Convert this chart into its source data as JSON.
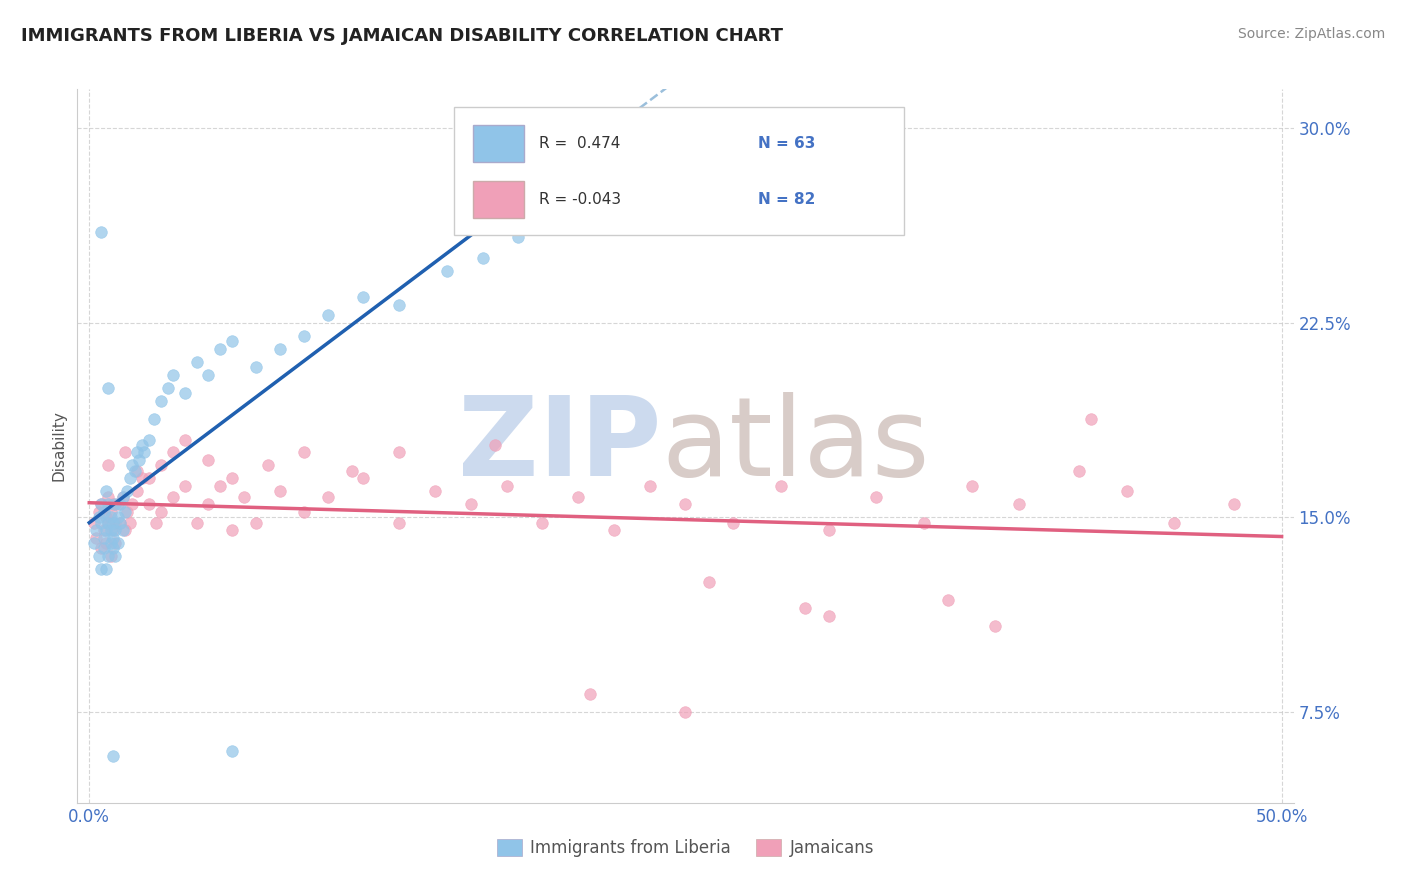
{
  "title": "IMMIGRANTS FROM LIBERIA VS JAMAICAN DISABILITY CORRELATION CHART",
  "source_text": "Source: ZipAtlas.com",
  "ylabel": "Disability",
  "xlim": [
    0.0,
    0.5
  ],
  "ylim": [
    0.04,
    0.315
  ],
  "yticks": [
    0.075,
    0.15,
    0.225,
    0.3
  ],
  "ytick_labels": [
    "7.5%",
    "15.0%",
    "22.5%",
    "30.0%"
  ],
  "xtick_labels": [
    "0.0%",
    "50.0%"
  ],
  "background_color": "#ffffff",
  "grid_color": "#cccccc",
  "legend_r1": "R =  0.474",
  "legend_n1": "N = 63",
  "legend_r2": "R = -0.043",
  "legend_n2": "N = 82",
  "color_liberia": "#90c4e8",
  "color_jamaican": "#f0a0b8",
  "trendline_color_liberia": "#2060b0",
  "trendline_color_jamaican": "#e06080",
  "trendline_dash_color": "#90b8d8",
  "tick_color": "#4472c4",
  "title_color": "#222222",
  "source_color": "#888888",
  "ylabel_color": "#555555",
  "legend_text_color": "#333333",
  "legend_n_color": "#4472c4",
  "watermark_zip_color": "#ccdaee",
  "watermark_atlas_color": "#d8ccc8",
  "liberia_x": [
    0.002,
    0.003,
    0.004,
    0.004,
    0.005,
    0.005,
    0.005,
    0.006,
    0.006,
    0.006,
    0.007,
    0.007,
    0.007,
    0.008,
    0.008,
    0.008,
    0.009,
    0.009,
    0.009,
    0.01,
    0.01,
    0.01,
    0.011,
    0.011,
    0.011,
    0.012,
    0.012,
    0.013,
    0.013,
    0.014,
    0.014,
    0.015,
    0.016,
    0.017,
    0.018,
    0.019,
    0.02,
    0.021,
    0.022,
    0.023,
    0.025,
    0.027,
    0.03,
    0.033,
    0.035,
    0.04,
    0.045,
    0.05,
    0.055,
    0.06,
    0.07,
    0.08,
    0.09,
    0.1,
    0.115,
    0.13,
    0.15,
    0.165,
    0.18,
    0.01,
    0.008,
    0.06,
    0.005
  ],
  "liberia_y": [
    0.14,
    0.145,
    0.135,
    0.15,
    0.13,
    0.148,
    0.155,
    0.142,
    0.138,
    0.152,
    0.145,
    0.13,
    0.16,
    0.135,
    0.148,
    0.155,
    0.14,
    0.145,
    0.15,
    0.138,
    0.142,
    0.148,
    0.135,
    0.155,
    0.145,
    0.15,
    0.14,
    0.148,
    0.155,
    0.145,
    0.158,
    0.152,
    0.16,
    0.165,
    0.17,
    0.168,
    0.175,
    0.172,
    0.178,
    0.175,
    0.18,
    0.188,
    0.195,
    0.2,
    0.205,
    0.198,
    0.21,
    0.205,
    0.215,
    0.218,
    0.208,
    0.215,
    0.22,
    0.228,
    0.235,
    0.232,
    0.245,
    0.25,
    0.258,
    0.058,
    0.2,
    0.06,
    0.26
  ],
  "jamaican_x": [
    0.002,
    0.003,
    0.004,
    0.005,
    0.005,
    0.006,
    0.007,
    0.007,
    0.008,
    0.008,
    0.009,
    0.009,
    0.01,
    0.01,
    0.011,
    0.011,
    0.012,
    0.013,
    0.014,
    0.015,
    0.016,
    0.017,
    0.018,
    0.02,
    0.022,
    0.025,
    0.028,
    0.03,
    0.035,
    0.04,
    0.045,
    0.05,
    0.055,
    0.06,
    0.065,
    0.07,
    0.08,
    0.09,
    0.1,
    0.115,
    0.13,
    0.145,
    0.16,
    0.175,
    0.19,
    0.205,
    0.22,
    0.235,
    0.25,
    0.27,
    0.29,
    0.31,
    0.33,
    0.35,
    0.37,
    0.39,
    0.415,
    0.435,
    0.455,
    0.48,
    0.008,
    0.015,
    0.02,
    0.025,
    0.03,
    0.035,
    0.04,
    0.05,
    0.06,
    0.075,
    0.09,
    0.11,
    0.13,
    0.17,
    0.21,
    0.26,
    0.31,
    0.36,
    0.42,
    0.38,
    0.3,
    0.25
  ],
  "jamaican_y": [
    0.148,
    0.142,
    0.152,
    0.138,
    0.155,
    0.145,
    0.15,
    0.14,
    0.148,
    0.158,
    0.135,
    0.152,
    0.145,
    0.155,
    0.148,
    0.14,
    0.155,
    0.148,
    0.158,
    0.145,
    0.152,
    0.148,
    0.155,
    0.16,
    0.165,
    0.155,
    0.148,
    0.152,
    0.158,
    0.162,
    0.148,
    0.155,
    0.162,
    0.145,
    0.158,
    0.148,
    0.16,
    0.152,
    0.158,
    0.165,
    0.148,
    0.16,
    0.155,
    0.162,
    0.148,
    0.158,
    0.145,
    0.162,
    0.155,
    0.148,
    0.162,
    0.145,
    0.158,
    0.148,
    0.162,
    0.155,
    0.168,
    0.16,
    0.148,
    0.155,
    0.17,
    0.175,
    0.168,
    0.165,
    0.17,
    0.175,
    0.18,
    0.172,
    0.165,
    0.17,
    0.175,
    0.168,
    0.175,
    0.178,
    0.082,
    0.125,
    0.112,
    0.118,
    0.188,
    0.108,
    0.115,
    0.075
  ]
}
